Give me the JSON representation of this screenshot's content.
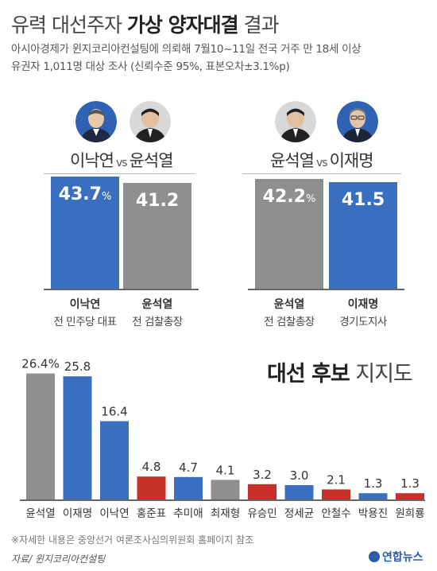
{
  "header": {
    "title_part1": "유력 대선주자 ",
    "title_bold": "가상 양자대결",
    "title_part2": " 결과",
    "subtitle1": "아시아경제가 윈지코리아컨설팅에 의뢰해 7월10~11일 전국 거주 만 18세 이상",
    "subtitle2": "유권자 1,011명 대상 조사 (신뢰수준 95%, 표본오차±3.1%p)"
  },
  "matchups": [
    {
      "left_name": "이낙연",
      "vs": "vs",
      "right_name": "윤석열",
      "bars": [
        {
          "value": "43.7",
          "unit": "%",
          "color": "#3a6fc0",
          "name": "이낙연",
          "role": "전 민주당 대표"
        },
        {
          "value": "41.2",
          "unit": "",
          "color": "#8f8f8f",
          "name": "윤석열",
          "role": "전 검찰총장"
        }
      ]
    },
    {
      "left_name": "윤석열",
      "vs": "vs",
      "right_name": "이재명",
      "bars": [
        {
          "value": "42.2",
          "unit": "%",
          "color": "#8f8f8f",
          "name": "윤석열",
          "role": "전 검찰총장"
        },
        {
          "value": "41.5",
          "unit": "",
          "color": "#3a6fc0",
          "name": "이재명",
          "role": "경기도지사"
        }
      ]
    }
  ],
  "support": {
    "title_bold": "대선 후보",
    "title_normal": " 지지도"
  },
  "chart_data": {
    "type": "bar",
    "title": "대선 후보 지지도",
    "categories": [
      "윤석열",
      "이재명",
      "이낙연",
      "홍준표",
      "추미애",
      "최재형",
      "유승민",
      "정세균",
      "안철수",
      "박용진",
      "원희룡"
    ],
    "values": [
      26.4,
      25.8,
      16.4,
      4.8,
      4.7,
      4.1,
      3.2,
      3.0,
      2.1,
      1.3,
      1.3
    ],
    "value_labels": [
      "26.4%",
      "25.8",
      "16.4",
      "4.8",
      "4.7",
      "4.1",
      "3.2",
      "3.0",
      "2.1",
      "1.3",
      "1.3"
    ],
    "colors": [
      "#8f8f8f",
      "#3a6fc0",
      "#3a6fc0",
      "#c9302c",
      "#3a6fc0",
      "#8f8f8f",
      "#c9302c",
      "#3a6fc0",
      "#c9302c",
      "#3a6fc0",
      "#c9302c"
    ],
    "xlabel": "",
    "ylabel": "",
    "ylim": [
      0,
      27
    ]
  },
  "footer": {
    "note": "※자세한 내용은 중앙선거 여론조사심의위원회 홈페이지 참조",
    "source": "자료/ 윈지코리아컨설팅",
    "logo": "연합뉴스"
  }
}
